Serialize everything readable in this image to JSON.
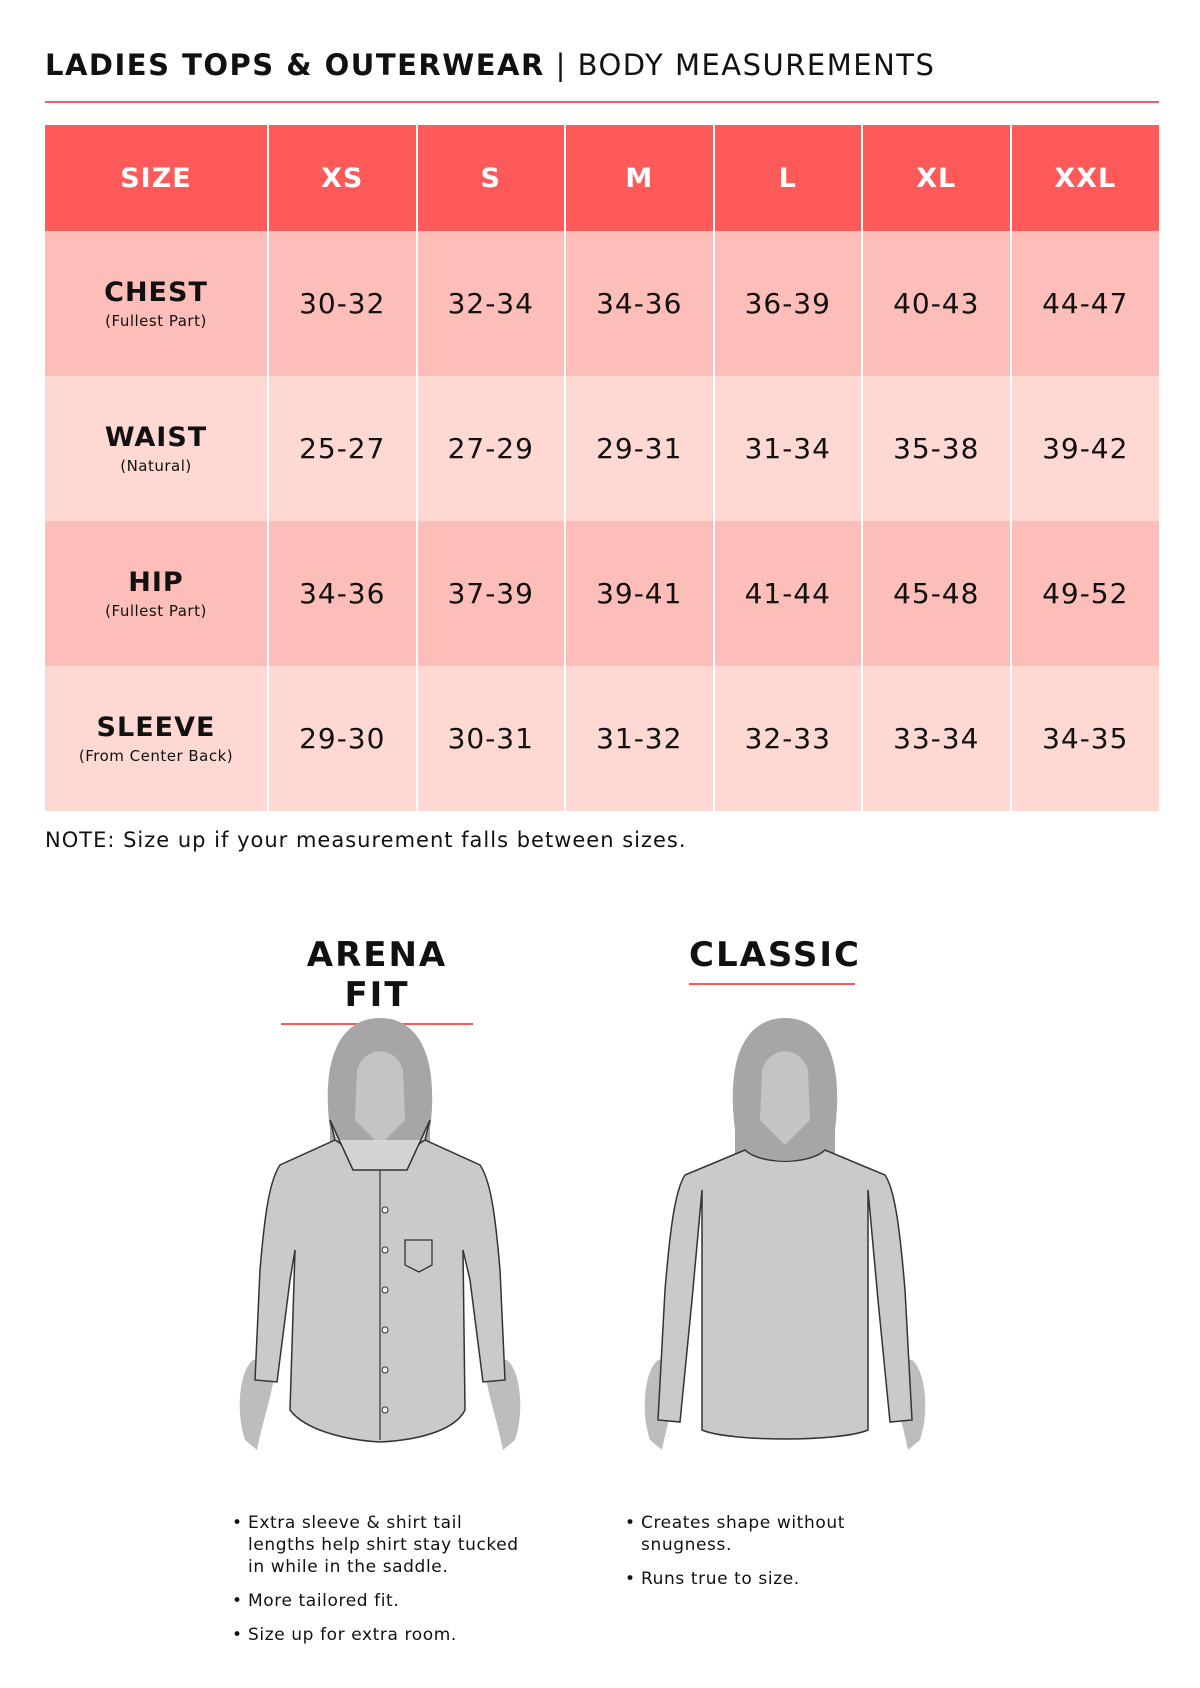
{
  "header": {
    "title_bold": "LADIES TOPS & OUTERWEAR",
    "separator": "|",
    "title_light": "BODY MEASUREMENTS"
  },
  "table": {
    "columns": [
      "SIZE",
      "XS",
      "S",
      "M",
      "L",
      "XL",
      "XXL"
    ],
    "rows": [
      {
        "label": "CHEST",
        "sub": "(Fullest Part)",
        "values": [
          "30-32",
          "32-34",
          "34-36",
          "36-39",
          "40-43",
          "44-47"
        ]
      },
      {
        "label": "WAIST",
        "sub": "(Natural)",
        "values": [
          "25-27",
          "27-29",
          "29-31",
          "31-34",
          "35-38",
          "39-42"
        ]
      },
      {
        "label": "HIP",
        "sub": "(Fullest Part)",
        "values": [
          "34-36",
          "37-39",
          "39-41",
          "41-44",
          "45-48",
          "49-52"
        ]
      },
      {
        "label": "SLEEVE",
        "sub": "(From Center Back)",
        "values": [
          "29-30",
          "30-31",
          "31-32",
          "32-33",
          "33-34",
          "34-35"
        ]
      }
    ]
  },
  "note": "NOTE: Size up if your measurement falls between sizes.",
  "fits": [
    {
      "title": "ARENA FIT",
      "bullets": [
        "Extra sleeve & shirt tail lengths help shirt stay tucked in while in the saddle.",
        "More tailored fit.",
        "Size up for extra room."
      ]
    },
    {
      "title": "CLASSIC",
      "bullets": [
        "Creates shape without snugness.",
        "Runs true to size."
      ]
    }
  ],
  "colors": {
    "header": "#fe5a5a",
    "row_dark": "#fdbdb8",
    "row_light": "#fed8d3",
    "accent_rule": "#f0605d"
  }
}
